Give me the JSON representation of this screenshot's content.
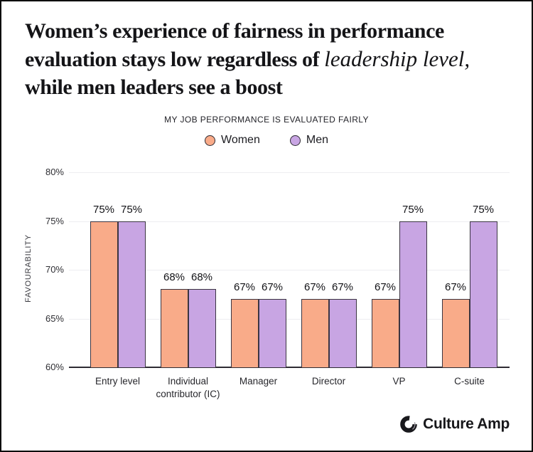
{
  "title": {
    "line1": "Women’s experience of fairness in performance",
    "line2_prefix": "evaluation stays low regardless of ",
    "line2_script": "leadership level,",
    "line3": "while men leaders see a boost"
  },
  "chart_data": {
    "type": "bar",
    "title": "MY JOB PERFORMANCE IS EVALUATED FAIRLY",
    "categories": [
      "Entry level",
      "Individual contributor (IC)",
      "Manager",
      "Director",
      "VP",
      "C-suite"
    ],
    "series": [
      {
        "name": "Women",
        "color": "#F9AB89",
        "values": [
          75,
          68,
          67,
          67,
          67,
          67
        ]
      },
      {
        "name": "Men",
        "color": "#C8A5E3",
        "values": [
          75,
          68,
          67,
          67,
          75,
          75
        ]
      }
    ],
    "ylabel": "FAVOURABILITY",
    "ylim": [
      60,
      80
    ],
    "yticks": [
      80,
      75,
      70,
      65,
      60
    ],
    "unit": "%",
    "grid": true,
    "legend_position": "top-center"
  },
  "footer": {
    "brand": "Culture Amp"
  }
}
